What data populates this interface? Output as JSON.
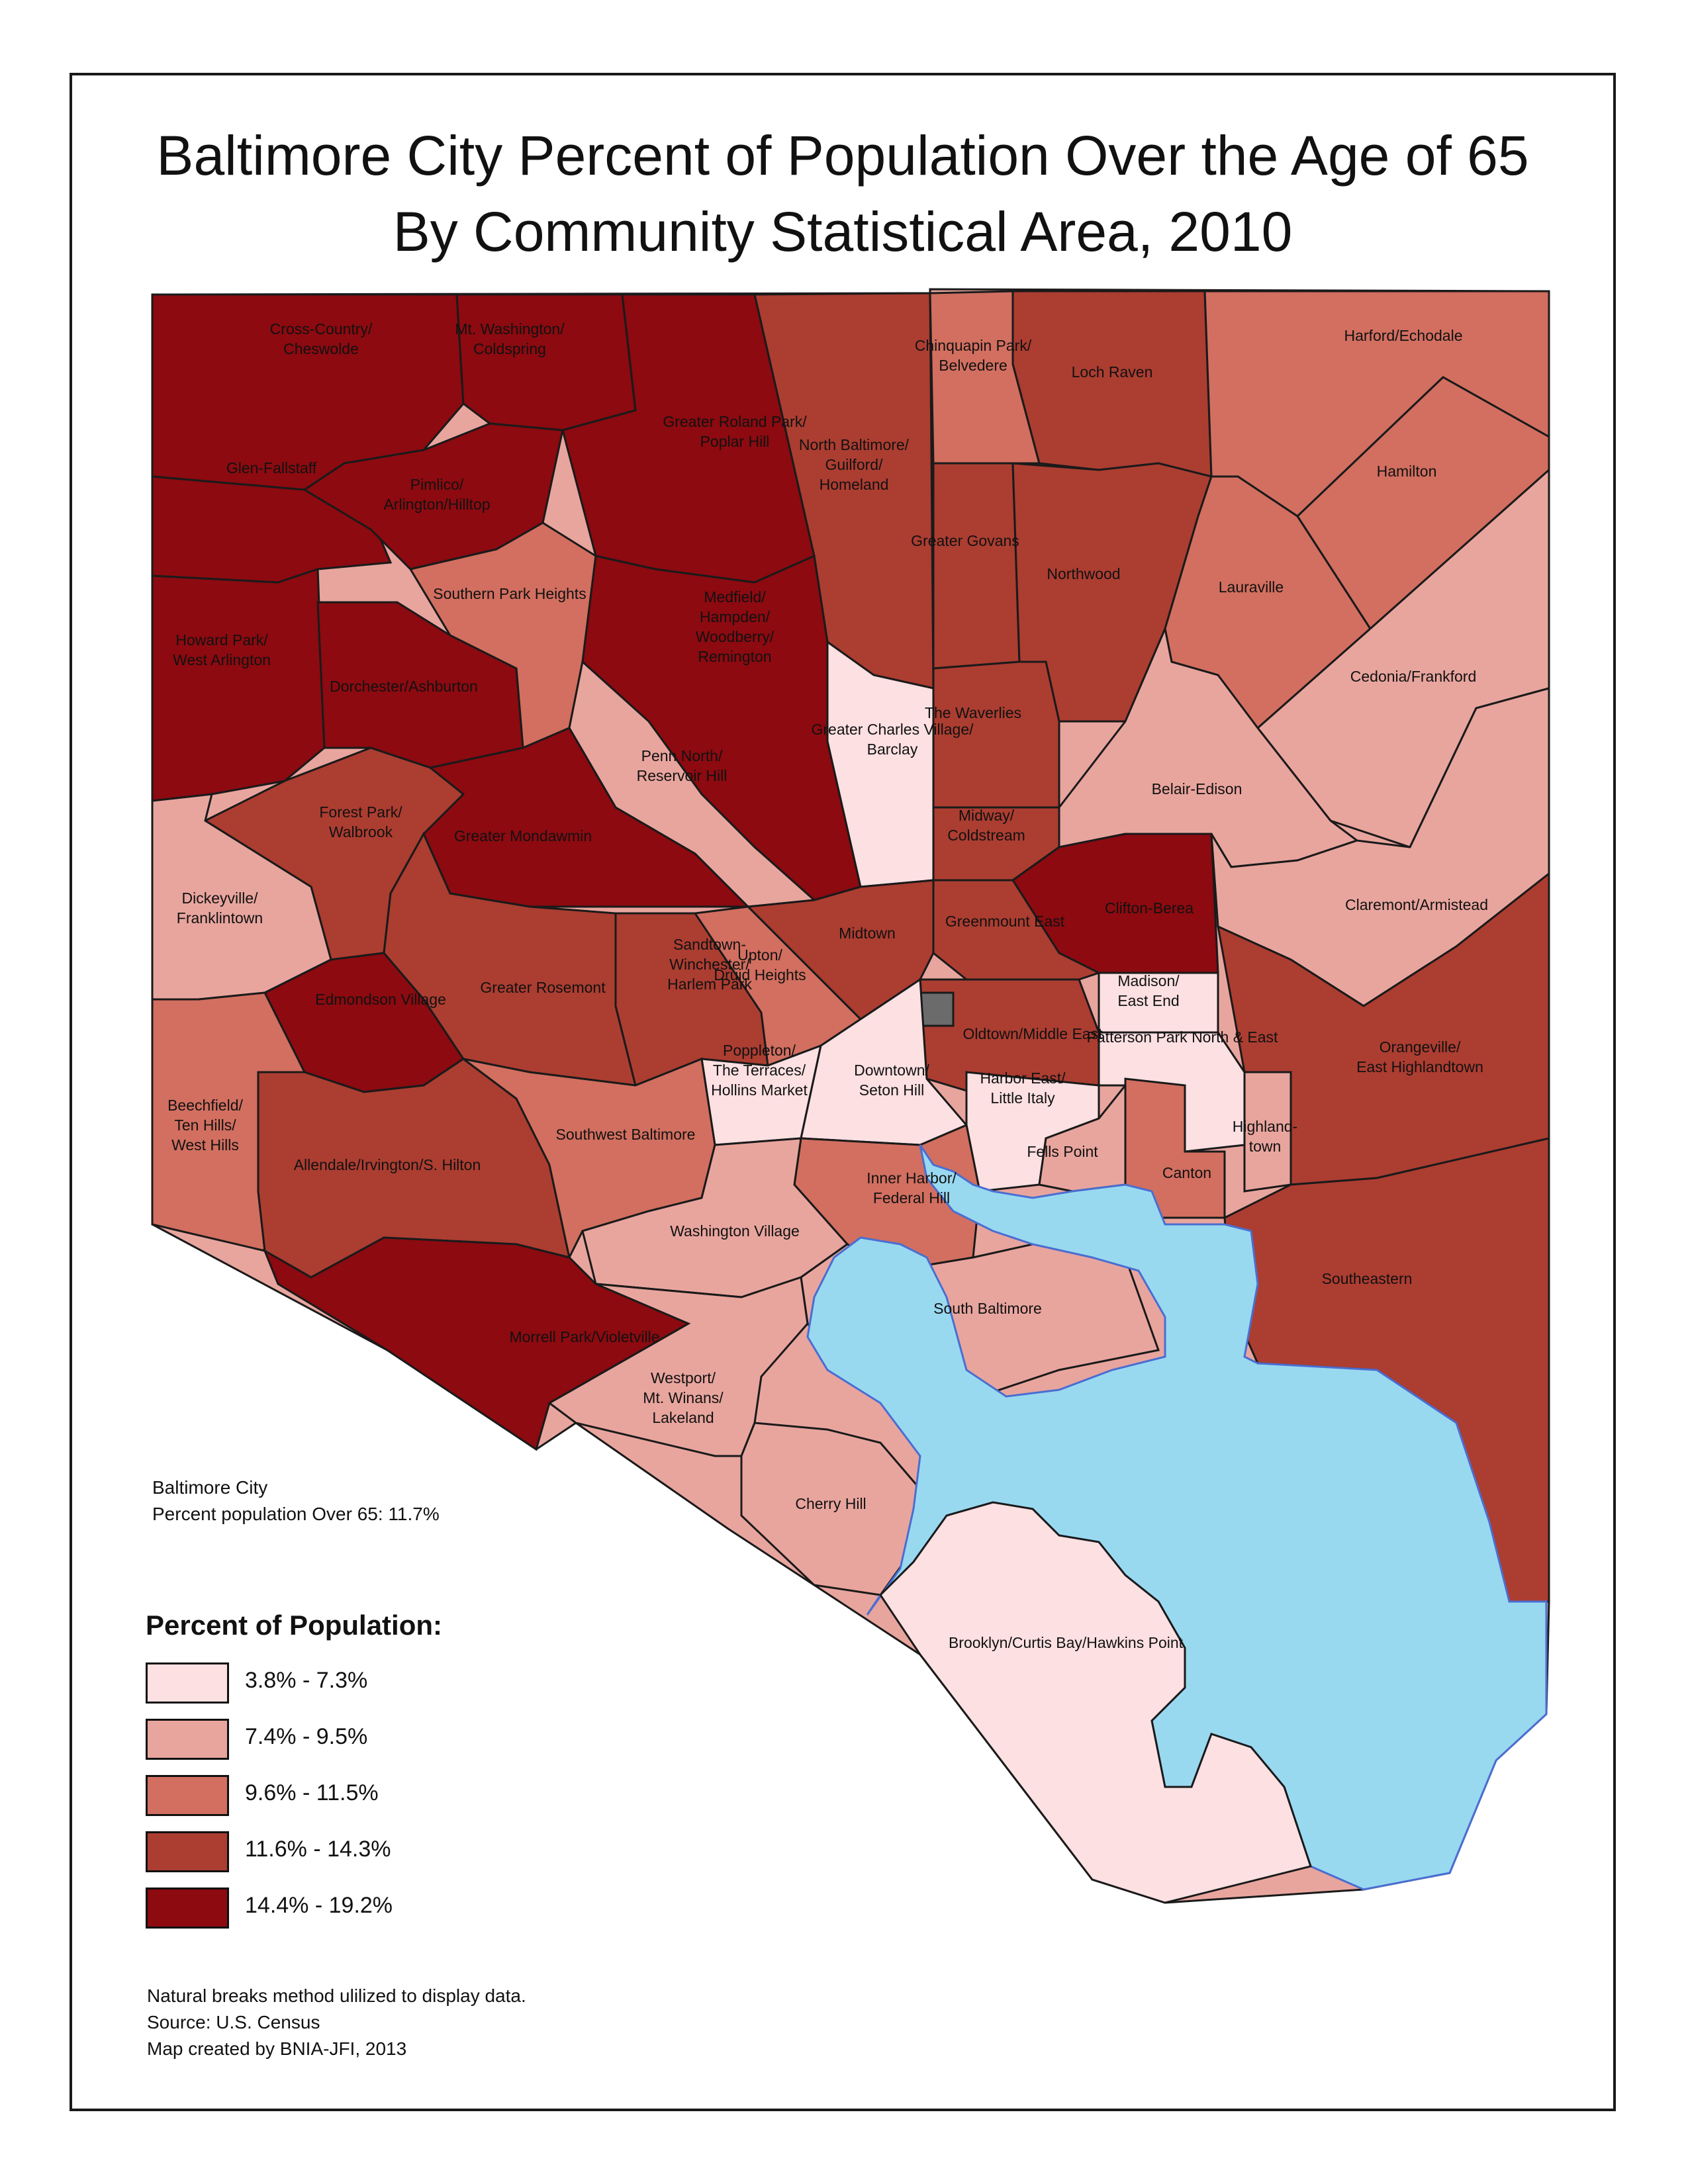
{
  "title_line1": "Baltimore City Percent of Population Over the Age of 65",
  "title_line2": "By Community Statistical Area, 2010",
  "city_summary": {
    "line1": "Baltimore City",
    "line2": "Percent population Over 65: 11.7%"
  },
  "legend": {
    "title": "Percent of Population:",
    "classes": [
      {
        "label": "3.8% - 7.3%",
        "color": "#fde0e2"
      },
      {
        "label": "7.4% - 9.5%",
        "color": "#e8a59e"
      },
      {
        "label": "9.6% - 11.5%",
        "color": "#d26f60"
      },
      {
        "label": "11.6% - 14.3%",
        "color": "#ac3d31"
      },
      {
        "label": "14.4% - 19.2%",
        "color": "#8c0a10"
      }
    ]
  },
  "notes": {
    "method": "Natural breaks method ulilized to display data.",
    "source": "Source: U.S. Census",
    "credit": "Map created by BNIA-JFI, 2013"
  },
  "areas": [
    {
      "name": "Cross-Country/ Cheswolde",
      "class": 5
    },
    {
      "name": "Mt. Washington/ Coldspring",
      "class": 5
    },
    {
      "name": "Glen-Fallstaff",
      "class": 5
    },
    {
      "name": "Pimlico/ Arlington/Hilltop",
      "class": 5
    },
    {
      "name": "Greater Roland Park/ Poplar Hill",
      "class": 5
    },
    {
      "name": "North Baltimore/ Guilford/ Homeland",
      "class": 4
    },
    {
      "name": "Chinquapin Park/ Belvedere",
      "class": 3
    },
    {
      "name": "Loch Raven",
      "class": 4
    },
    {
      "name": "Harford/Echodale",
      "class": 3
    },
    {
      "name": "Hamilton",
      "class": 3
    },
    {
      "name": "Howard Park/ West Arlington",
      "class": 5
    },
    {
      "name": "Southern Park Heights",
      "class": 3
    },
    {
      "name": "Dorchester/Ashburton",
      "class": 5
    },
    {
      "name": "Medfield/ Hampden/ Woodberry/ Remington",
      "class": 5
    },
    {
      "name": "Greater Govans",
      "class": 4
    },
    {
      "name": "Northwood",
      "class": 4
    },
    {
      "name": "Lauraville",
      "class": 3
    },
    {
      "name": "Cedonia/Frankford",
      "class": 2
    },
    {
      "name": "Greater Charles Village/ Barclay",
      "class": 1
    },
    {
      "name": "The Waverlies",
      "class": 4
    },
    {
      "name": "Penn North/ Reservoir Hill",
      "class": 2
    },
    {
      "name": "Belair-Edison",
      "class": 2
    },
    {
      "name": "Forest Park/ Walbrook",
      "class": 4
    },
    {
      "name": "Greater Mondawmin",
      "class": 5
    },
    {
      "name": "Midway/ Coldstream",
      "class": 4
    },
    {
      "name": "Dickeyville/ Franklintown",
      "class": 2
    },
    {
      "name": "Clifton-Berea",
      "class": 5
    },
    {
      "name": "Claremont/Armistead",
      "class": 2
    },
    {
      "name": "Midtown",
      "class": 4
    },
    {
      "name": "Greenmount East",
      "class": 4
    },
    {
      "name": "Edmondson Village",
      "class": 5
    },
    {
      "name": "Greater Rosemont",
      "class": 4
    },
    {
      "name": "Sandtown- Winchester/ Harlem Park",
      "class": 4
    },
    {
      "name": "Upton/ Druid Heights",
      "class": 3
    },
    {
      "name": "Madison/ East End",
      "class": 1
    },
    {
      "name": "Oldtown/Middle East",
      "class": 4
    },
    {
      "name": "Patterson Park North & East",
      "class": 1
    },
    {
      "name": "Orangeville/ East Highlandtown",
      "class": 4
    },
    {
      "name": "Poppleton/ The Terraces/ Hollins Market",
      "class": 1
    },
    {
      "name": "Downtown/ Seton Hill",
      "class": 1
    },
    {
      "name": "Harbor East/ Little Italy",
      "class": 1
    },
    {
      "name": "Beechfield/ Ten Hills/ West Hills",
      "class": 3
    },
    {
      "name": "Allendale/Irvington/S. Hilton",
      "class": 4
    },
    {
      "name": "Southwest Baltimore",
      "class": 3
    },
    {
      "name": "Fells Point",
      "class": 2
    },
    {
      "name": "Highland- town",
      "class": 2
    },
    {
      "name": "Inner Harbor/ Federal Hill",
      "class": 3
    },
    {
      "name": "Canton",
      "class": 3
    },
    {
      "name": "Washington Village",
      "class": 2
    },
    {
      "name": "Southeastern",
      "class": 4
    },
    {
      "name": "South Baltimore",
      "class": 2
    },
    {
      "name": "Morrell Park/Violetville",
      "class": 5
    },
    {
      "name": "Westport/ Mt. Winans/ Lakeland",
      "class": 2
    },
    {
      "name": "Cherry Hill",
      "class": 2
    },
    {
      "name": "Brooklyn/Curtis Bay/Hawkins Point",
      "class": 1
    }
  ]
}
